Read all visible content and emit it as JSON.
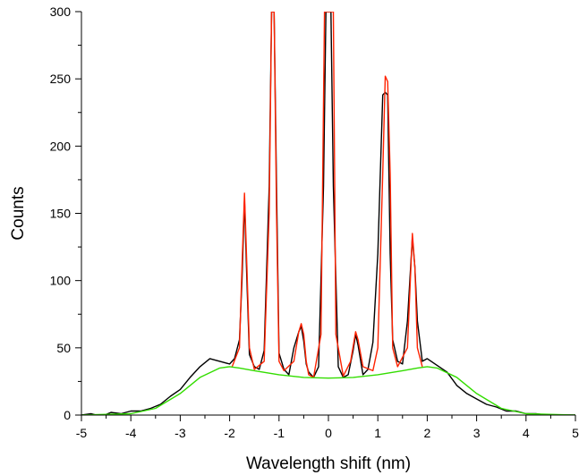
{
  "chart_data": {
    "type": "line",
    "title": "",
    "xlabel": "Wavelength shift (nm)",
    "ylabel": "Counts",
    "xlim": [
      -5,
      5
    ],
    "ylim": [
      0,
      300
    ],
    "x_ticks": [
      -5,
      -4,
      -3,
      -2,
      -1,
      0,
      1,
      2,
      3,
      4,
      5
    ],
    "x_tick_labels": [
      "-5",
      "-4",
      "-3",
      "-2",
      "-1",
      "0",
      "1",
      "2",
      "3",
      "4",
      "5"
    ],
    "y_ticks": [
      0,
      50,
      100,
      150,
      200,
      250,
      300
    ],
    "y_tick_labels": [
      "0",
      "50",
      "100",
      "150",
      "200",
      "250",
      "300"
    ],
    "grid": false,
    "legend": "none",
    "series": [
      {
        "color": "#000000",
        "x": [
          -5.0,
          -4.8,
          -4.6,
          -4.4,
          -4.2,
          -4.0,
          -3.8,
          -3.6,
          -3.4,
          -3.2,
          -3.0,
          -2.8,
          -2.6,
          -2.4,
          -2.2,
          -2.0,
          -1.9,
          -1.8,
          -1.75,
          -1.7,
          -1.65,
          -1.6,
          -1.5,
          -1.4,
          -1.3,
          -1.2,
          -1.15,
          -1.1,
          -1.05,
          -1.0,
          -0.9,
          -0.8,
          -0.7,
          -0.6,
          -0.55,
          -0.5,
          -0.45,
          -0.4,
          -0.3,
          -0.2,
          -0.1,
          -0.05,
          0.0,
          0.05,
          0.1,
          0.2,
          0.3,
          0.4,
          0.5,
          0.55,
          0.6,
          0.7,
          0.8,
          0.9,
          1.0,
          1.1,
          1.15,
          1.2,
          1.25,
          1.3,
          1.4,
          1.5,
          1.6,
          1.7,
          1.75,
          1.8,
          1.9,
          2.0,
          2.2,
          2.4,
          2.6,
          2.8,
          3.0,
          3.2,
          3.4,
          3.6,
          3.8,
          4.0,
          4.2,
          4.4,
          4.6,
          4.8,
          5.0
        ],
        "y": [
          0,
          1,
          -1,
          2,
          1,
          3,
          3,
          5,
          8,
          14,
          19,
          28,
          36,
          42,
          40,
          38,
          42,
          56,
          100,
          160,
          100,
          45,
          36,
          34,
          48,
          170,
          300,
          300,
          170,
          46,
          34,
          30,
          50,
          62,
          66,
          55,
          38,
          32,
          28,
          36,
          170,
          300,
          300,
          300,
          170,
          36,
          28,
          30,
          48,
          60,
          52,
          30,
          34,
          54,
          120,
          238,
          240,
          238,
          120,
          56,
          40,
          38,
          70,
          132,
          110,
          70,
          40,
          42,
          37,
          32,
          22,
          16,
          12,
          8,
          6,
          3,
          3,
          1,
          1,
          0,
          0,
          0,
          0
        ]
      },
      {
        "color": "#ff2200",
        "x": [
          -1.95,
          -1.8,
          -1.75,
          -1.7,
          -1.65,
          -1.6,
          -1.5,
          -1.3,
          -1.2,
          -1.15,
          -1.1,
          -1.05,
          -1.0,
          -0.9,
          -0.7,
          -0.6,
          -0.55,
          -0.5,
          -0.45,
          -0.4,
          -0.3,
          -0.15,
          -0.08,
          -0.05,
          0.05,
          0.1,
          0.15,
          0.3,
          0.45,
          0.55,
          0.6,
          0.7,
          0.9,
          1.0,
          1.1,
          1.15,
          1.2,
          1.25,
          1.3,
          1.4,
          1.6,
          1.7,
          1.75,
          1.8,
          1.9
        ],
        "y": [
          36,
          50,
          110,
          165,
          110,
          50,
          34,
          40,
          150,
          300,
          300,
          150,
          40,
          33,
          40,
          62,
          68,
          60,
          40,
          30,
          28,
          60,
          300,
          300,
          300,
          300,
          60,
          29,
          40,
          62,
          56,
          36,
          33,
          50,
          180,
          252,
          248,
          180,
          50,
          36,
          50,
          135,
          110,
          50,
          36
        ]
      },
      {
        "color": "#33dd00",
        "x": [
          -5.0,
          -4.0,
          -3.5,
          -3.0,
          -2.6,
          -2.2,
          -2.0,
          -1.8,
          -1.5,
          -1.0,
          -0.5,
          0.0,
          0.5,
          1.0,
          1.5,
          1.8,
          2.0,
          2.2,
          2.6,
          3.0,
          3.5,
          4.0,
          5.0
        ],
        "y": [
          0,
          1,
          5,
          16,
          28,
          35,
          36,
          35,
          33,
          30,
          28,
          27.5,
          28,
          30,
          33,
          35,
          36,
          35,
          28,
          16,
          5,
          1,
          0
        ]
      }
    ]
  }
}
